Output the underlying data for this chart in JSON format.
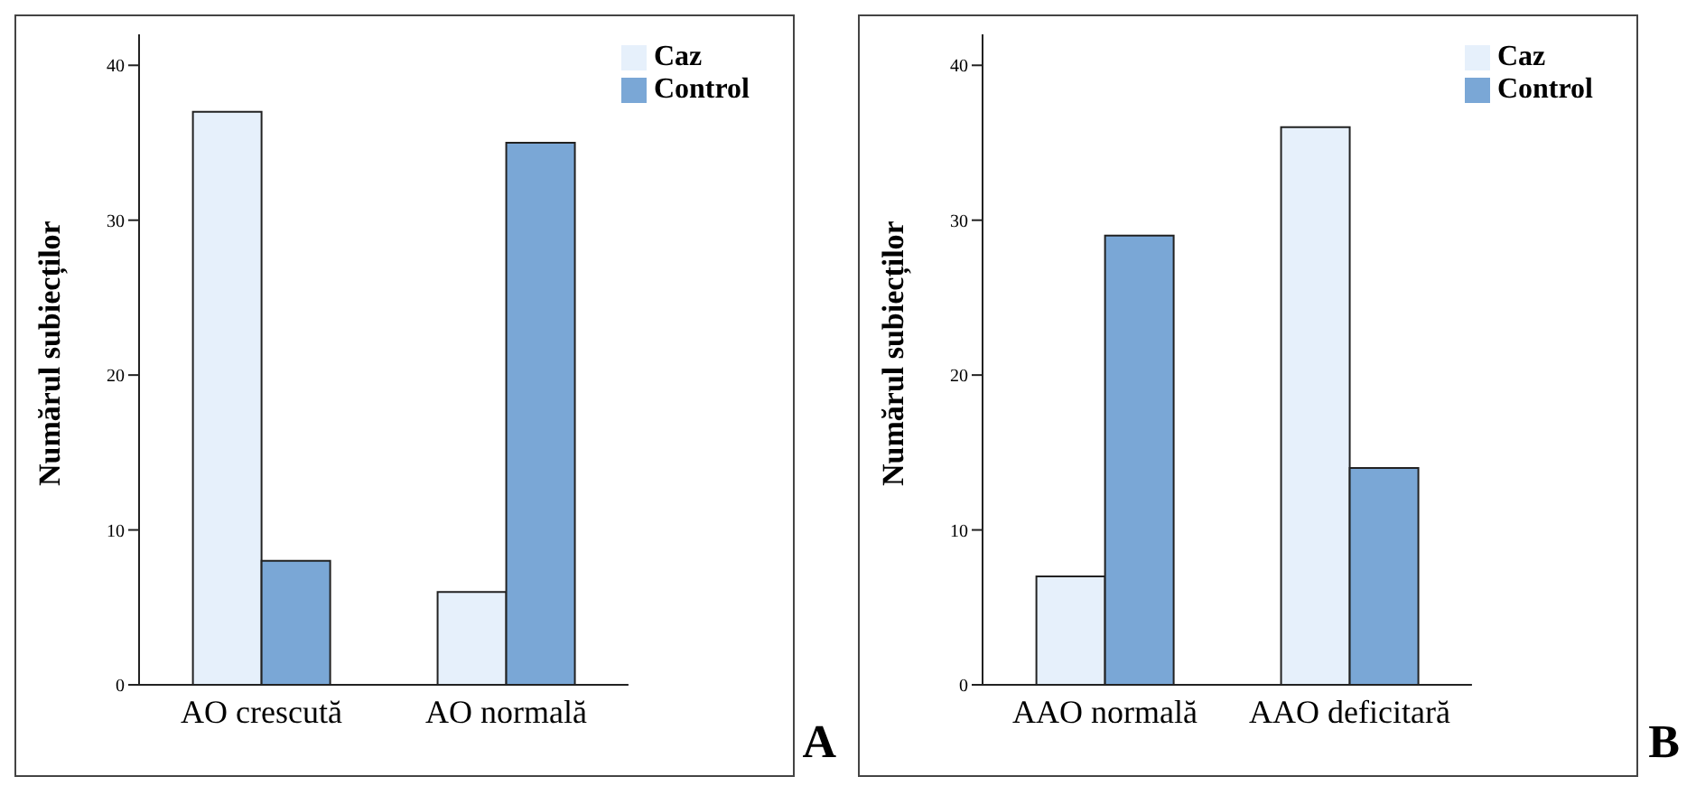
{
  "chart_data": [
    {
      "type": "bar",
      "ylabel": "Numărul subiecților",
      "categories": [
        "AO crescută",
        "AO normală"
      ],
      "series": [
        {
          "name": "Caz",
          "color": "#e6f0fb",
          "values": [
            37,
            6
          ]
        },
        {
          "name": "Control",
          "color": "#7aa7d6",
          "values": [
            8,
            35
          ]
        }
      ],
      "ylim": [
        0,
        42
      ],
      "yticks": [
        0,
        10,
        20,
        30,
        40
      ],
      "legend": "top right",
      "annotations": [
        "A"
      ]
    },
    {
      "type": "bar",
      "ylabel": "Numărul subiecților",
      "categories": [
        "AAO normală",
        "AAO deficitară"
      ],
      "series": [
        {
          "name": "Caz",
          "color": "#e6f0fb",
          "values": [
            7,
            36
          ]
        },
        {
          "name": "Control",
          "color": "#7aa7d6",
          "values": [
            29,
            14
          ]
        }
      ],
      "ylim": [
        0,
        42
      ],
      "yticks": [
        0,
        10,
        20,
        30,
        40
      ],
      "legend": "top right",
      "annotations": [
        "B"
      ]
    }
  ]
}
